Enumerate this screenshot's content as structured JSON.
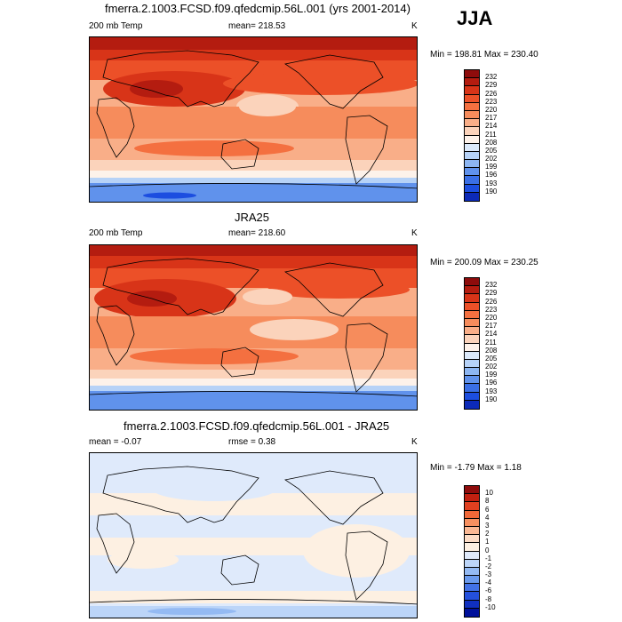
{
  "season": "JJA",
  "panels": [
    {
      "title": "fmerra.2.1003.FCSD.f09.qfedcmip.56L.001 (yrs 2001-2014)",
      "left_label": "200 mb Temp",
      "center_label": "mean= 218.53",
      "units": "K",
      "minmax": "Min = 198.81 Max = 230.40",
      "colorbar_labels": [
        "232",
        "229",
        "226",
        "223",
        "220",
        "217",
        "214",
        "211",
        "208",
        "205",
        "202",
        "199",
        "196",
        "193",
        "190"
      ],
      "colorbar_colors": [
        "#8e0c0c",
        "#b41c10",
        "#d83418",
        "#ec5028",
        "#f47040",
        "#f68c5c",
        "#f9ae88",
        "#fbd3bb",
        "#fdf2ea",
        "#dbe9fa",
        "#b6d2f7",
        "#8db6f2",
        "#6092ec",
        "#3a6fe6",
        "#1c4ee0",
        "#0c2ab8"
      ]
    },
    {
      "title": "JRA25",
      "left_label": "200 mb Temp",
      "center_label": "mean= 218.60",
      "units": "K",
      "minmax": "Min = 200.09 Max = 230.25",
      "colorbar_labels": [
        "232",
        "229",
        "226",
        "223",
        "220",
        "217",
        "214",
        "211",
        "208",
        "205",
        "202",
        "199",
        "196",
        "193",
        "190"
      ],
      "colorbar_colors": [
        "#8e0c0c",
        "#b41c10",
        "#d83418",
        "#ec5028",
        "#f47040",
        "#f68c5c",
        "#f9ae88",
        "#fbd3bb",
        "#fdf2ea",
        "#dbe9fa",
        "#b6d2f7",
        "#8db6f2",
        "#6092ec",
        "#3a6fe6",
        "#1c4ee0",
        "#0c2ab8"
      ]
    },
    {
      "title": "fmerra.2.1003.FCSD.f09.qfedcmip.56L.001 - JRA25",
      "left_label": "mean =  -0.07",
      "center_label": "rmse =   0.38",
      "units": "K",
      "minmax": "Min =  -1.79 Max =   1.18",
      "colorbar_labels": [
        "10",
        "8",
        "6",
        "4",
        "3",
        "2",
        "1",
        "0",
        "-1",
        "-2",
        "-3",
        "-4",
        "-6",
        "-8",
        "-10"
      ],
      "colorbar_colors": [
        "#8e0c0c",
        "#c02010",
        "#e04020",
        "#f06838",
        "#f79060",
        "#fab894",
        "#fcdcc6",
        "#fdf0e2",
        "#dfeafb",
        "#bcd5f8",
        "#94baf3",
        "#6a9aed",
        "#4272e6",
        "#2450dd",
        "#1030c0",
        "#00109a"
      ]
    }
  ]
}
